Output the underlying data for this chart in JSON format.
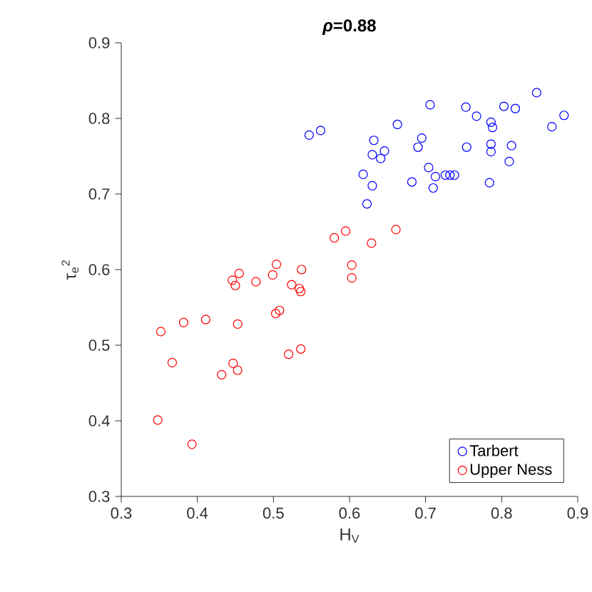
{
  "chart_data": {
    "type": "scatter",
    "title": "*ρ*=0.88",
    "xlabel": "H$_{V}$",
    "ylabel": "τ$_{e}$$^{2}$",
    "xlim": [
      0.3,
      0.9
    ],
    "ylim": [
      0.3,
      0.9
    ],
    "xticks": [
      0.3,
      0.4,
      0.5,
      0.6,
      0.7,
      0.8,
      0.9
    ],
    "yticks": [
      0.3,
      0.4,
      0.5,
      0.6,
      0.7,
      0.8,
      0.9
    ],
    "grid": false,
    "legend": "bottom right",
    "marker": "circle",
    "series": [
      {
        "name": "Tarbert",
        "color": "#0000ff",
        "x": [
          0.547,
          0.562,
          0.846,
          0.882,
          0.866,
          0.803,
          0.818,
          0.753,
          0.767,
          0.706,
          0.663,
          0.786,
          0.788,
          0.695,
          0.69,
          0.754,
          0.786,
          0.786,
          0.813,
          0.81,
          0.632,
          0.63,
          0.646,
          0.641,
          0.618,
          0.63,
          0.623,
          0.682,
          0.704,
          0.713,
          0.71,
          0.726,
          0.732,
          0.738,
          0.784
        ],
        "values": [
          0.778,
          0.784,
          0.834,
          0.804,
          0.789,
          0.816,
          0.813,
          0.815,
          0.803,
          0.818,
          0.792,
          0.795,
          0.788,
          0.774,
          0.762,
          0.762,
          0.766,
          0.756,
          0.764,
          0.743,
          0.771,
          0.752,
          0.757,
          0.747,
          0.726,
          0.711,
          0.687,
          0.716,
          0.735,
          0.723,
          0.708,
          0.725,
          0.725,
          0.725,
          0.715
        ]
      },
      {
        "name": "Upper Ness",
        "color": "#ff0000",
        "x": [
          0.595,
          0.661,
          0.629,
          0.603,
          0.58,
          0.504,
          0.537,
          0.603,
          0.455,
          0.446,
          0.45,
          0.477,
          0.499,
          0.524,
          0.534,
          0.536,
          0.508,
          0.503,
          0.352,
          0.382,
          0.411,
          0.453,
          0.367,
          0.447,
          0.453,
          0.432,
          0.52,
          0.536,
          0.348,
          0.393
        ],
        "values": [
          0.651,
          0.653,
          0.635,
          0.606,
          0.642,
          0.607,
          0.6,
          0.589,
          0.595,
          0.586,
          0.579,
          0.584,
          0.593,
          0.58,
          0.575,
          0.571,
          0.546,
          0.542,
          0.518,
          0.53,
          0.534,
          0.528,
          0.477,
          0.476,
          0.467,
          0.461,
          0.488,
          0.495,
          0.401,
          0.369
        ]
      }
    ]
  }
}
